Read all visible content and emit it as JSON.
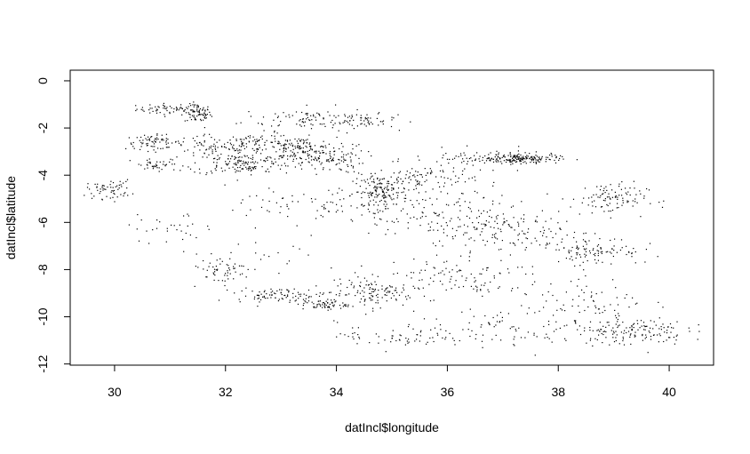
{
  "chart_data": {
    "type": "scatter",
    "title": "",
    "xlabel": "datIncl$longitude",
    "ylabel": "datIncl$latitude",
    "xlim": [
      29.2,
      40.8
    ],
    "ylim": [
      -12.05,
      0.45
    ],
    "xticks": [
      30,
      32,
      34,
      36,
      38,
      40
    ],
    "yticks": [
      0,
      -2,
      -4,
      -6,
      -8,
      -10,
      -12
    ],
    "xtick_labels": [
      "30",
      "32",
      "34",
      "36",
      "38",
      "40"
    ],
    "ytick_labels": [
      "0",
      "-2",
      "-4",
      "-6",
      "-8",
      "-10",
      "-12"
    ],
    "grid": false,
    "point_color": "#000000",
    "clusters": [
      {
        "x": 31.0,
        "y": -1.2,
        "sx": 0.3,
        "sy": 0.12,
        "n": 60
      },
      {
        "x": 31.5,
        "y": -1.4,
        "sx": 0.12,
        "sy": 0.2,
        "n": 70
      },
      {
        "x": 33.5,
        "y": -1.6,
        "sx": 0.6,
        "sy": 0.25,
        "n": 90
      },
      {
        "x": 34.5,
        "y": -1.7,
        "sx": 0.3,
        "sy": 0.15,
        "n": 50
      },
      {
        "x": 30.7,
        "y": -2.6,
        "sx": 0.25,
        "sy": 0.15,
        "n": 70
      },
      {
        "x": 31.8,
        "y": -2.8,
        "sx": 0.4,
        "sy": 0.25,
        "n": 80
      },
      {
        "x": 32.6,
        "y": -2.6,
        "sx": 0.3,
        "sy": 0.2,
        "n": 60
      },
      {
        "x": 33.3,
        "y": -2.9,
        "sx": 0.35,
        "sy": 0.25,
        "n": 130
      },
      {
        "x": 32.3,
        "y": -3.5,
        "sx": 0.45,
        "sy": 0.25,
        "n": 150
      },
      {
        "x": 33.8,
        "y": -3.3,
        "sx": 0.35,
        "sy": 0.3,
        "n": 110
      },
      {
        "x": 30.8,
        "y": -3.6,
        "sx": 0.25,
        "sy": 0.15,
        "n": 40
      },
      {
        "x": 29.9,
        "y": -4.6,
        "sx": 0.2,
        "sy": 0.2,
        "n": 60
      },
      {
        "x": 34.8,
        "y": -4.7,
        "sx": 0.25,
        "sy": 0.35,
        "n": 150
      },
      {
        "x": 35.6,
        "y": -4.2,
        "sx": 0.45,
        "sy": 0.35,
        "n": 100
      },
      {
        "x": 36.6,
        "y": -3.3,
        "sx": 0.6,
        "sy": 0.2,
        "n": 60
      },
      {
        "x": 37.3,
        "y": -3.3,
        "sx": 0.35,
        "sy": 0.1,
        "n": 170
      },
      {
        "x": 38.9,
        "y": -5.0,
        "sx": 0.35,
        "sy": 0.35,
        "n": 100
      },
      {
        "x": 36.2,
        "y": -5.8,
        "sx": 0.8,
        "sy": 0.5,
        "n": 150
      },
      {
        "x": 37.3,
        "y": -6.6,
        "sx": 0.8,
        "sy": 0.5,
        "n": 110
      },
      {
        "x": 38.7,
        "y": -7.2,
        "sx": 0.4,
        "sy": 0.3,
        "n": 90
      },
      {
        "x": 31.9,
        "y": -8.0,
        "sx": 0.3,
        "sy": 0.3,
        "n": 50
      },
      {
        "x": 33.0,
        "y": -9.1,
        "sx": 0.4,
        "sy": 0.15,
        "n": 90
      },
      {
        "x": 33.8,
        "y": -9.5,
        "sx": 0.2,
        "sy": 0.1,
        "n": 60
      },
      {
        "x": 34.6,
        "y": -9.0,
        "sx": 0.35,
        "sy": 0.3,
        "n": 110
      },
      {
        "x": 36.0,
        "y": -8.4,
        "sx": 0.9,
        "sy": 0.4,
        "n": 110
      },
      {
        "x": 35.2,
        "y": -10.8,
        "sx": 0.6,
        "sy": 0.3,
        "n": 70
      },
      {
        "x": 37.5,
        "y": -10.4,
        "sx": 0.9,
        "sy": 0.4,
        "n": 90
      },
      {
        "x": 39.3,
        "y": -10.6,
        "sx": 0.5,
        "sy": 0.3,
        "n": 140
      },
      {
        "x": 38.6,
        "y": -9.3,
        "sx": 0.5,
        "sy": 0.5,
        "n": 60
      },
      {
        "x": 31.0,
        "y": -6.3,
        "sx": 0.4,
        "sy": 0.3,
        "n": 30
      },
      {
        "x": 33.6,
        "y": -5.3,
        "sx": 0.8,
        "sy": 0.4,
        "n": 70
      },
      {
        "x": 32.8,
        "y": -7.5,
        "sx": 0.6,
        "sy": 0.5,
        "n": 25
      }
    ]
  }
}
